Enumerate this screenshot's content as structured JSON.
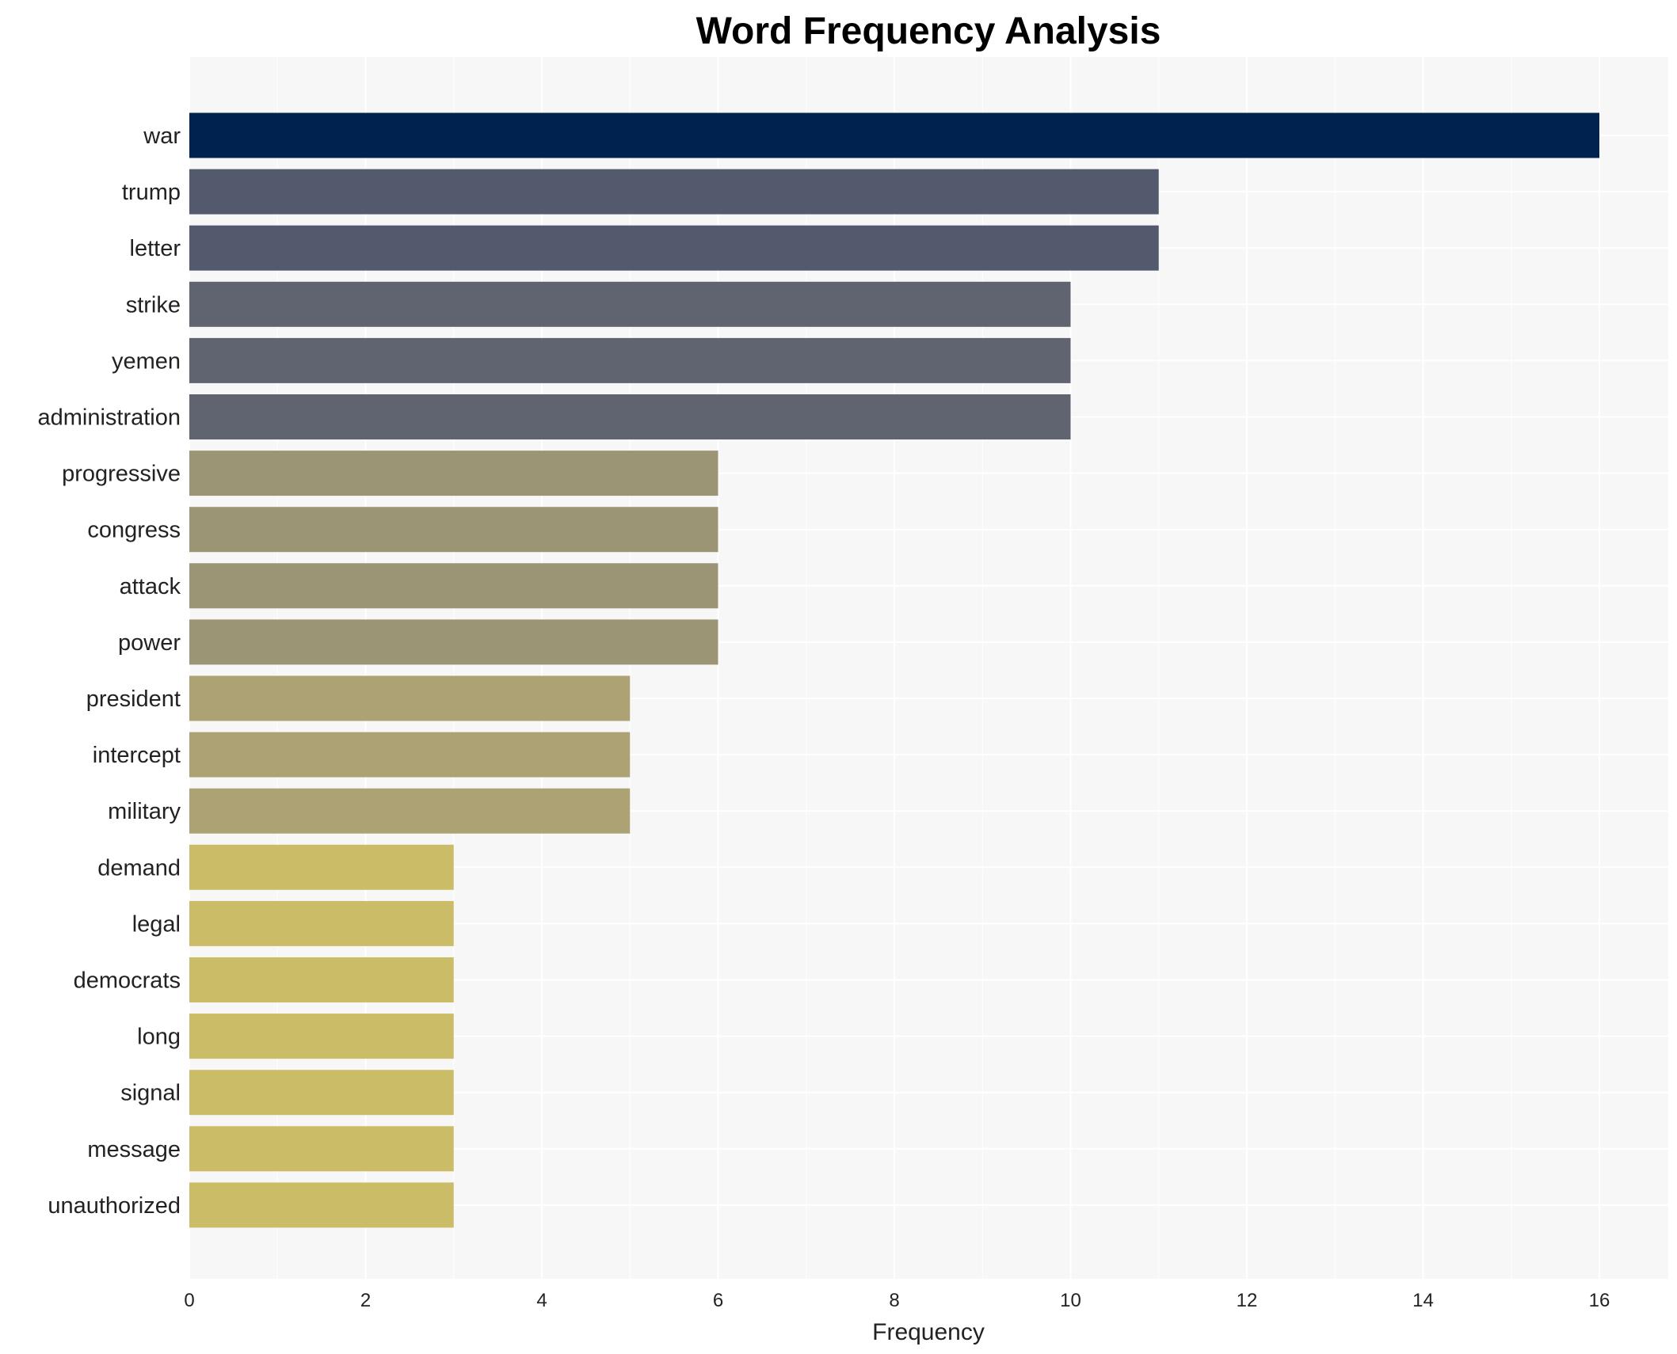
{
  "chart_data": {
    "type": "bar",
    "orientation": "horizontal",
    "title": "Word Frequency Analysis",
    "xlabel": "Frequency",
    "ylabel": "",
    "xlim": [
      0,
      16.8
    ],
    "xticks": [
      0,
      2,
      4,
      6,
      8,
      10,
      12,
      14,
      16
    ],
    "grid": true,
    "categories": [
      "war",
      "trump",
      "letter",
      "strike",
      "yemen",
      "administration",
      "progressive",
      "congress",
      "attack",
      "power",
      "president",
      "intercept",
      "military",
      "demand",
      "legal",
      "democrats",
      "long",
      "signal",
      "message",
      "unauthorized"
    ],
    "values": [
      16,
      11,
      11,
      10,
      10,
      10,
      6,
      6,
      6,
      6,
      5,
      5,
      5,
      3,
      3,
      3,
      3,
      3,
      3,
      3
    ],
    "colors": [
      "#00224e",
      "#535a6e",
      "#535a6e",
      "#5f6470",
      "#5f6470",
      "#5f6470",
      "#9b9475",
      "#9b9475",
      "#9b9475",
      "#9b9475",
      "#aca274",
      "#aca274",
      "#aca274",
      "#cbbc67",
      "#cbbc67",
      "#cbbc67",
      "#cbbc67",
      "#cbbc67",
      "#cbbc67",
      "#cbbc67"
    ],
    "background": "#f7f7f7"
  }
}
